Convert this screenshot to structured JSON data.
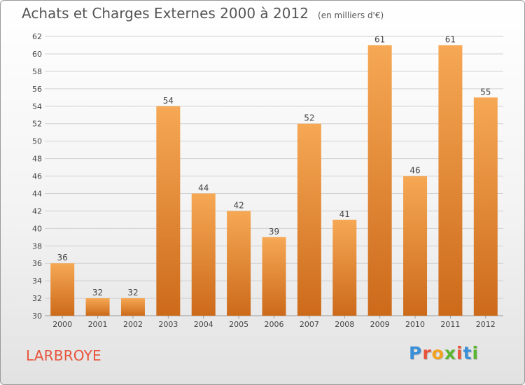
{
  "header": {
    "title": "Achats et Charges Externes 2000 à 2012",
    "subtitle": "(en milliers d'€)"
  },
  "footer": {
    "commune": "LARBROYE",
    "brand": "Proxiti",
    "brand_colors": [
      "#3b8fd6",
      "#e8533a",
      "#f2a21f",
      "#5cb531",
      "#e8533a",
      "#3b8fd6",
      "#5cb531"
    ]
  },
  "colors": {
    "bar_top": "#f6a854",
    "bar_bottom": "#cc6a1a",
    "grid": "#d0d0d0",
    "axis_text": "#444444"
  },
  "chart_data": {
    "type": "bar",
    "title": "Achats et Charges Externes 2000 à 2012",
    "subtitle": "(en milliers d'€)",
    "xlabel": "",
    "ylabel": "",
    "categories": [
      "2000",
      "2001",
      "2002",
      "2003",
      "2004",
      "2005",
      "2006",
      "2007",
      "2008",
      "2009",
      "2010",
      "2011",
      "2012"
    ],
    "values": [
      36,
      32,
      32,
      54,
      44,
      42,
      39,
      52,
      41,
      61,
      46,
      61,
      55
    ],
    "ylim": [
      30,
      62
    ],
    "yticks": [
      30,
      32,
      34,
      36,
      38,
      40,
      42,
      44,
      46,
      48,
      50,
      52,
      54,
      56,
      58,
      60,
      62
    ],
    "grid": true,
    "data_labels": true
  }
}
